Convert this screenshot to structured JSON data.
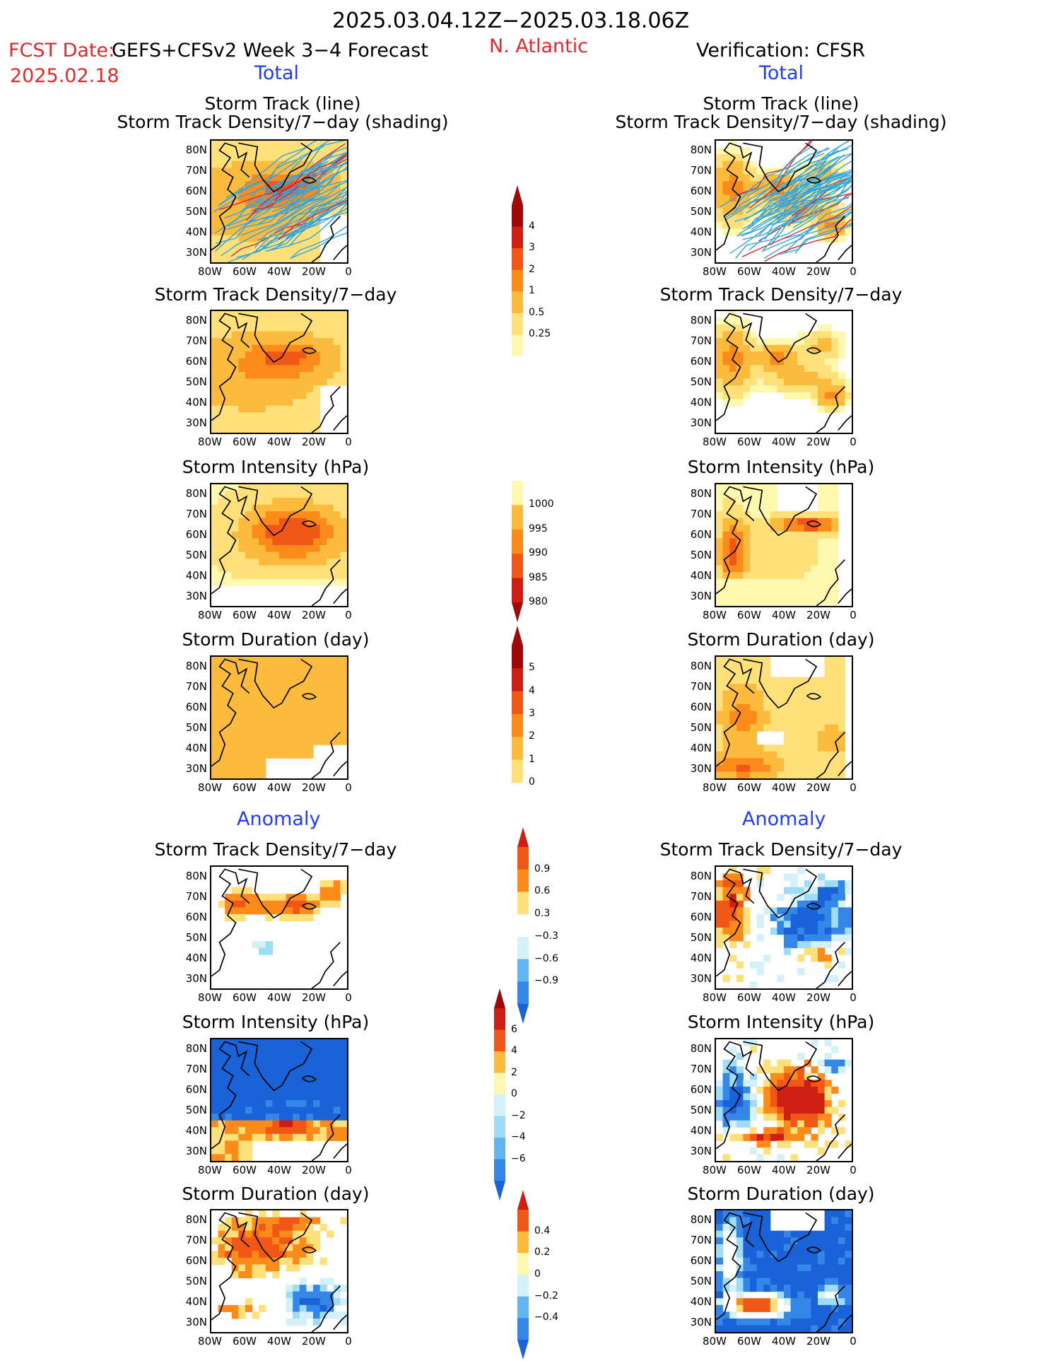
{
  "header": {
    "period": "2025.03.04.12Z−2025.03.18.06Z",
    "fcst_label": "FCST Date:",
    "model": "GEFS+CFSv2 Week 3−4 Forecast",
    "fcst_date": "2025.02.18",
    "region": "N. Atlantic",
    "verification": "Verification: CFSR"
  },
  "sections": {
    "total": "Total",
    "anomaly": "Anomaly"
  },
  "panel_titles": {
    "track_line": "Storm Track (line)",
    "track_shading": "Storm Track Density/7−day (shading)",
    "density": "Storm Track Density/7−day",
    "intensity": "Storm Intensity (hPa)",
    "duration": "Storm Duration (day)"
  },
  "axes": {
    "lat_ticks": [
      "80N",
      "70N",
      "60N",
      "50N",
      "40N",
      "30N"
    ],
    "lon_ticks": [
      "80W",
      "60W",
      "40W",
      "20W",
      "0"
    ]
  },
  "colors": {
    "pos": [
      "#fff9b0",
      "#ffe079",
      "#fdbb3d",
      "#fc8b1a",
      "#f15818",
      "#cf1f13",
      "#9e0a0a"
    ],
    "neg": [
      "#d4f0f9",
      "#9fdcf6",
      "#62b5ee",
      "#3587e7",
      "#1a62d8"
    ],
    "track": "#35a6dc",
    "track_strong": "#d72a3a"
  },
  "chart_data": [
    {
      "type": "heatmap",
      "title": "Storm Track (line) / Storm Track Density/7−day (shading)",
      "panel": "forecast-total-track",
      "colorbar_levels": [
        0.25,
        0.5,
        1,
        2,
        3,
        4
      ],
      "xlim": [
        -80,
        0
      ],
      "ylim": [
        25,
        85
      ]
    },
    {
      "type": "heatmap",
      "title": "Storm Track Density/7−day",
      "panels": [
        "forecast-total-density",
        "verification-total-density"
      ],
      "colorbar_levels": [
        0.25,
        0.5,
        1,
        2,
        3,
        4
      ]
    },
    {
      "type": "heatmap",
      "title": "Storm Intensity (hPa)",
      "panels": [
        "forecast-total-intensity",
        "verification-total-intensity"
      ],
      "colorbar_levels": [
        1000,
        995,
        990,
        985,
        980
      ]
    },
    {
      "type": "heatmap",
      "title": "Storm Duration (day)",
      "panels": [
        "forecast-total-duration",
        "verification-total-duration"
      ],
      "colorbar_levels": [
        0,
        1,
        2,
        3,
        4,
        5
      ]
    },
    {
      "type": "heatmap",
      "title": "Anomaly Storm Track Density/7−day",
      "colorbar_levels": [
        -0.9,
        -0.6,
        -0.3,
        0.3,
        0.6,
        0.9
      ]
    },
    {
      "type": "heatmap",
      "title": "Anomaly Storm Intensity (hPa)",
      "colorbar_levels": [
        -6,
        -4,
        -2,
        0,
        2,
        4,
        6
      ]
    },
    {
      "type": "heatmap",
      "title": "Anomaly Storm Duration (day)",
      "colorbar_levels": [
        -0.4,
        -0.2,
        0,
        0.2,
        0.4
      ]
    }
  ],
  "colorbars": {
    "density": [
      "4",
      "3",
      "2",
      "1",
      "0.5",
      "0.25"
    ],
    "intensity": [
      "1000",
      "995",
      "990",
      "985",
      "980"
    ],
    "duration": [
      "5",
      "4",
      "3",
      "2",
      "1",
      "0"
    ],
    "anom_density": [
      "0.9",
      "0.6",
      "0.3",
      "−0.3",
      "−0.6",
      "−0.9"
    ],
    "anom_intensity": [
      "6",
      "4",
      "2",
      "0",
      "−2",
      "−4",
      "−6"
    ],
    "anom_duration": [
      "0.4",
      "0.2",
      "0",
      "−0.2",
      "−0.4"
    ]
  }
}
